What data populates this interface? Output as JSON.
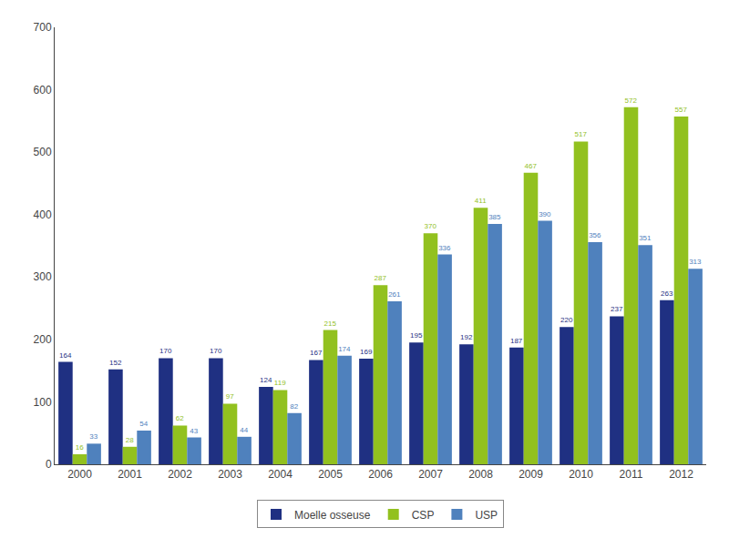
{
  "chart_data": {
    "type": "bar",
    "categories": [
      "2000",
      "2001",
      "2002",
      "2003",
      "2004",
      "2005",
      "2006",
      "2007",
      "2008",
      "2009",
      "2010",
      "2011",
      "2012"
    ],
    "series": [
      {
        "name": "Moelle osseuse",
        "color": "#1F3082",
        "values": [
          164,
          152,
          170,
          170,
          124,
          167,
          169,
          195,
          192,
          187,
          220,
          237,
          263
        ]
      },
      {
        "name": "CSP",
        "color": "#92C11F",
        "values": [
          16,
          28,
          62,
          97,
          119,
          215,
          287,
          370,
          411,
          467,
          517,
          572,
          557
        ]
      },
      {
        "name": "USP",
        "color": "#4F81BD",
        "values": [
          33,
          54,
          43,
          44,
          82,
          174,
          261,
          336,
          385,
          390,
          356,
          351,
          313
        ]
      }
    ],
    "ylim": [
      0,
      700
    ],
    "yticks": [
      0,
      100,
      200,
      300,
      400,
      500,
      600,
      700
    ],
    "grid": false,
    "legend": "bottom",
    "data_labels": true
  }
}
